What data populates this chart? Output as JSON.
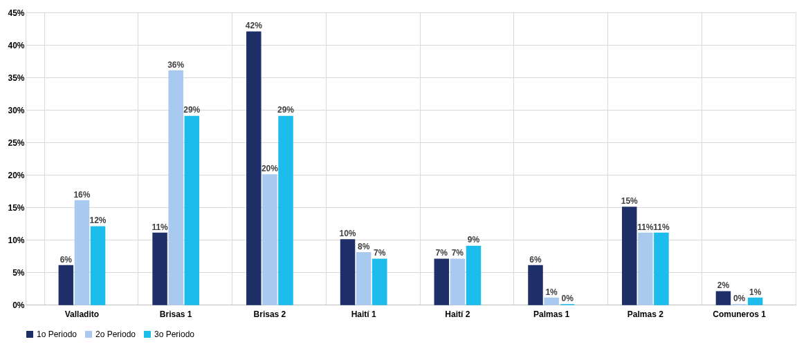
{
  "chart_data": {
    "type": "bar",
    "categories": [
      "Valladito",
      "Brisas 1",
      "Brisas 2",
      "Haití 1",
      "Haití 2",
      "Palmas 1",
      "Palmas 2",
      "Comuneros 1"
    ],
    "series": [
      {
        "name": "1o Periodo",
        "color": "#1f3068",
        "values": [
          6,
          11,
          42,
          10,
          7,
          6,
          15,
          2
        ],
        "value_labels": [
          "6%",
          "11%",
          "42%",
          "10%",
          "7%",
          "6%",
          "15%",
          "2%"
        ]
      },
      {
        "name": "2o Periodo",
        "color": "#a9c9ee",
        "values": [
          16,
          36,
          20,
          8,
          7,
          1,
          11,
          0
        ],
        "value_labels": [
          "16%",
          "36%",
          "20%",
          "8%",
          "7%",
          "1%",
          "11%",
          "0%"
        ]
      },
      {
        "name": "3o Periodo",
        "color": "#1cbcec",
        "values": [
          12,
          29,
          29,
          7,
          9,
          0,
          11,
          1
        ],
        "value_labels": [
          "12%",
          "29%",
          "29%",
          "7%",
          "9%",
          "0%",
          "11%",
          "1%"
        ]
      }
    ],
    "ylim": [
      0,
      45
    ],
    "yticks": [
      {
        "value": 0,
        "label": "0%"
      },
      {
        "value": 5,
        "label": "5%"
      },
      {
        "value": 10,
        "label": "10%"
      },
      {
        "value": 15,
        "label": "15%"
      },
      {
        "value": 20,
        "label": "20%"
      },
      {
        "value": 25,
        "label": "25%"
      },
      {
        "value": 30,
        "label": "30%"
      },
      {
        "value": 35,
        "label": "35%"
      },
      {
        "value": 40,
        "label": "40%"
      },
      {
        "value": 45,
        "label": "45%"
      }
    ],
    "grid": true,
    "legend": "bottom"
  }
}
